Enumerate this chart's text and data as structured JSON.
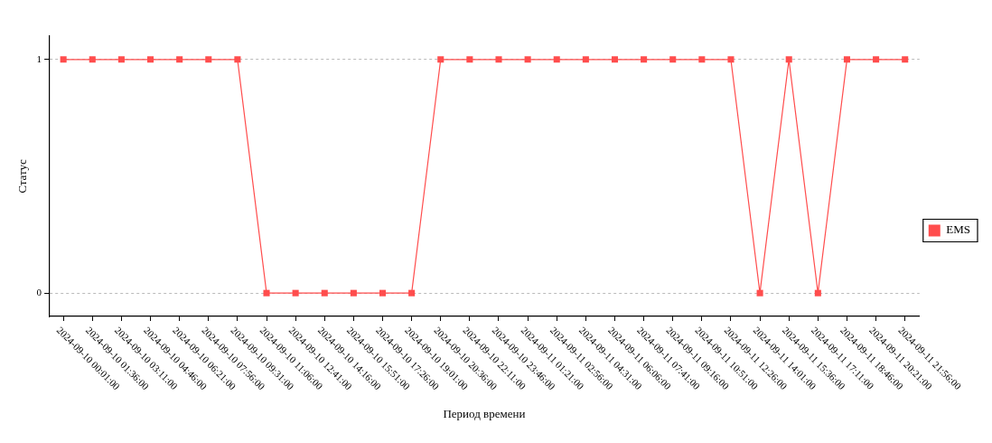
{
  "chart_data": {
    "type": "line",
    "xlabel": "Период времени",
    "ylabel": "Статус",
    "categories": [
      "2024-09-10 00:01:00",
      "2024-09-10 01:36:00",
      "2024-09-10 03:11:00",
      "2024-09-10 04:46:00",
      "2024-09-10 06:21:00",
      "2024-09-10 07:56:00",
      "2024-09-10 09:31:00",
      "2024-09-10 11:06:00",
      "2024-09-10 12:41:00",
      "2024-09-10 14:16:00",
      "2024-09-10 15:51:00",
      "2024-09-10 17:26:00",
      "2024-09-10 19:01:00",
      "2024-09-10 20:36:00",
      "2024-09-10 22:11:00",
      "2024-09-10 23:46:00",
      "2024-09-11 01:21:00",
      "2024-09-11 02:56:00",
      "2024-09-11 04:31:00",
      "2024-09-11 06:06:00",
      "2024-09-11 07:41:00",
      "2024-09-11 09:16:00",
      "2024-09-11 10:51:00",
      "2024-09-11 12:26:00",
      "2024-09-11 14:01:00",
      "2024-09-11 15:36:00",
      "2024-09-11 17:11:00",
      "2024-09-11 18:46:00",
      "2024-09-11 20:21:00",
      "2024-09-11 21:56:00"
    ],
    "series": [
      {
        "name": "EMS",
        "color": "#ff4d4d",
        "values": [
          1,
          1,
          1,
          1,
          1,
          1,
          1,
          0,
          0,
          0,
          0,
          0,
          0,
          1,
          1,
          1,
          1,
          1,
          1,
          1,
          1,
          1,
          1,
          1,
          0,
          1,
          0,
          1,
          1,
          1
        ]
      }
    ],
    "ylim": [
      -0.1,
      1.1
    ],
    "yticks": [
      0,
      1
    ],
    "grid": "y",
    "legend": "right",
    "marker": "square",
    "line_style": "solid"
  }
}
